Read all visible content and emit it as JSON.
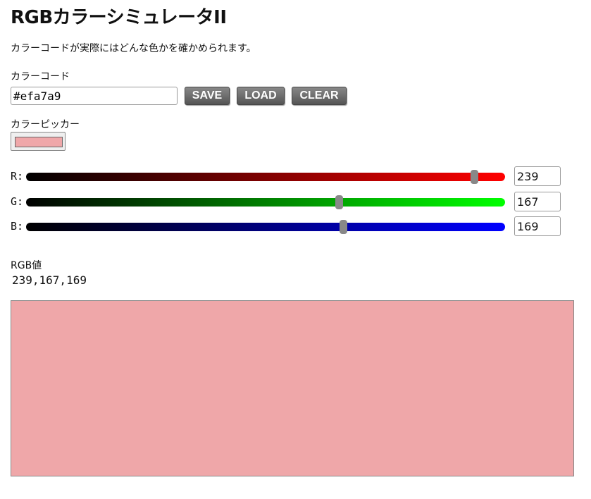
{
  "title": "RGBカラーシミュレータII",
  "description": "カラーコードが実際にはどんな色かを確かめられます。",
  "color_code": {
    "label": "カラーコード",
    "value": "#efa7a9"
  },
  "buttons": {
    "save": "SAVE",
    "load": "LOAD",
    "clear": "CLEAR"
  },
  "picker": {
    "label": "カラーピッカー",
    "value": "#efa7a9"
  },
  "channels": [
    {
      "label": "R:",
      "value": 239,
      "max": 255,
      "color": "#ff0000"
    },
    {
      "label": "G:",
      "value": 167,
      "max": 255,
      "color": "#00ff00"
    },
    {
      "label": "B:",
      "value": 169,
      "max": 255,
      "color": "#0000ff"
    }
  ],
  "rgb": {
    "label": "RGB値",
    "value": "239,167,169"
  },
  "preview_color": "#efa7a9"
}
